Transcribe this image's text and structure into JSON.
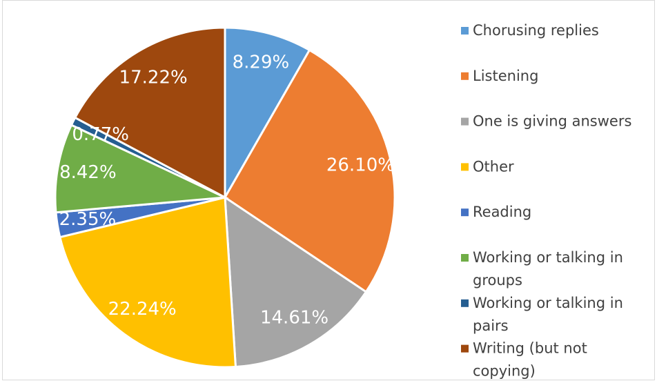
{
  "chart_data": {
    "type": "pie",
    "categories": [
      "Chorusing replies",
      "Listening",
      "One is giving answers",
      "Other",
      "Reading",
      "Working or talking in groups",
      "Working or talking in pairs",
      "Writing (but not copying)"
    ],
    "values": [
      8.29,
      26.1,
      14.61,
      22.24,
      2.35,
      8.42,
      0.77,
      17.22
    ],
    "value_labels": [
      "8.29%",
      "26.10%",
      "14.61%",
      "22.24%",
      "2.35%",
      "8.42%",
      "0.77%",
      "17.22%"
    ],
    "colors": [
      "#5b9bd5",
      "#ed7d31",
      "#a5a5a5",
      "#ffc000",
      "#4472c4",
      "#70ad47",
      "#255e91",
      "#9e480e"
    ],
    "legend": "right"
  }
}
